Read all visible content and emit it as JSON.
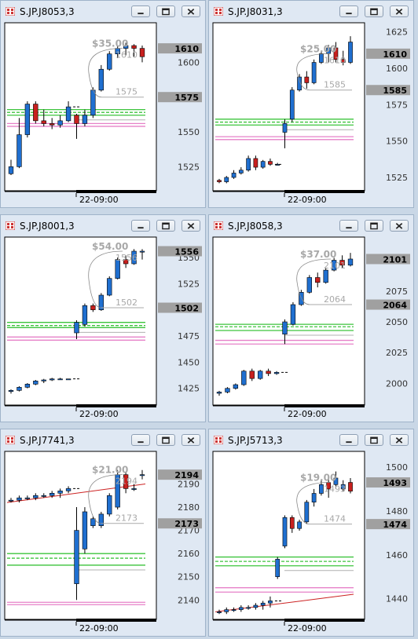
{
  "colors": {
    "bull": "#1f6fd0",
    "bear": "#c8201e",
    "support": "#3cc43c",
    "resistance": "#e680c8",
    "tag_bg": "#a0a0a0",
    "panel": "#ffffff"
  },
  "windows": [
    {
      "title": "S.JP.J8053,3",
      "chart_data": {
        "type": "candlestick",
        "symbol": "S.JP.J8053",
        "ylim": [
          1510,
          1625
        ],
        "yticks": [
          "1600",
          "1575",
          "1550",
          "1525"
        ],
        "xlabel": "22-09:00",
        "price_tags": [
          "1610",
          "1575"
        ],
        "annotations": {
          "range": "$35.00",
          "high": "1610",
          "low": "1575"
        },
        "candles": [
          {
            "o": 1520,
            "h": 1530,
            "l": 1519,
            "c": 1525
          },
          {
            "o": 1525,
            "h": 1560,
            "l": 1524,
            "c": 1548
          },
          {
            "o": 1548,
            "h": 1572,
            "l": 1546,
            "c": 1570
          },
          {
            "o": 1570,
            "h": 1572,
            "l": 1556,
            "c": 1558
          },
          {
            "o": 1558,
            "h": 1566,
            "l": 1554,
            "c": 1556
          },
          {
            "o": 1556,
            "h": 1560,
            "l": 1552,
            "c": 1555
          },
          {
            "o": 1555,
            "h": 1562,
            "l": 1553,
            "c": 1558
          },
          {
            "o": 1558,
            "h": 1572,
            "l": 1557,
            "c": 1568
          },
          {
            "o": 1562,
            "h": 1563,
            "l": 1545,
            "c": 1556
          },
          {
            "o": 1556,
            "h": 1566,
            "l": 1554,
            "c": 1562
          },
          {
            "o": 1562,
            "h": 1582,
            "l": 1560,
            "c": 1580
          },
          {
            "o": 1580,
            "h": 1598,
            "l": 1579,
            "c": 1595
          },
          {
            "o": 1595,
            "h": 1608,
            "l": 1594,
            "c": 1606
          },
          {
            "o": 1606,
            "h": 1612,
            "l": 1603,
            "c": 1610
          },
          {
            "o": 1610,
            "h": 1614,
            "l": 1605,
            "c": 1612
          },
          {
            "o": 1612,
            "h": 1613,
            "l": 1604,
            "c": 1610
          },
          {
            "o": 1610,
            "h": 1612,
            "l": 1600,
            "c": 1604
          }
        ],
        "support": [
          1566,
          1564,
          1562
        ],
        "resistance": [
          1556,
          1554
        ]
      }
    },
    {
      "title": "S.JP.J8031,3",
      "chart_data": {
        "type": "candlestick",
        "symbol": "S.JP.J8031",
        "ylim": [
          1518,
          1628
        ],
        "yticks": [
          "1625",
          "1600",
          "1575",
          "1550",
          "1525"
        ],
        "xlabel": "22-09:00",
        "price_tags": [
          "1610",
          "1585"
        ],
        "annotations": {
          "range": "$25.00",
          "high": "1610",
          "low": "1585"
        },
        "candles": [
          {
            "o": 1523,
            "h": 1524,
            "l": 1521,
            "c": 1522
          },
          {
            "o": 1522,
            "h": 1526,
            "l": 1521,
            "c": 1525
          },
          {
            "o": 1525,
            "h": 1530,
            "l": 1524,
            "c": 1528
          },
          {
            "o": 1528,
            "h": 1532,
            "l": 1527,
            "c": 1530
          },
          {
            "o": 1530,
            "h": 1540,
            "l": 1529,
            "c": 1538
          },
          {
            "o": 1538,
            "h": 1540,
            "l": 1530,
            "c": 1532
          },
          {
            "o": 1532,
            "h": 1537,
            "l": 1531,
            "c": 1536
          },
          {
            "o": 1536,
            "h": 1538,
            "l": 1533,
            "c": 1534
          },
          {
            "o": 1534,
            "h": 1535,
            "l": 1534,
            "c": 1534
          },
          {
            "o": 1556,
            "h": 1565,
            "l": 1545,
            "c": 1562
          },
          {
            "o": 1565,
            "h": 1587,
            "l": 1563,
            "c": 1585
          },
          {
            "o": 1585,
            "h": 1596,
            "l": 1584,
            "c": 1594
          },
          {
            "o": 1594,
            "h": 1598,
            "l": 1586,
            "c": 1590
          },
          {
            "o": 1590,
            "h": 1606,
            "l": 1589,
            "c": 1604
          },
          {
            "o": 1604,
            "h": 1612,
            "l": 1603,
            "c": 1610
          },
          {
            "o": 1610,
            "h": 1616,
            "l": 1604,
            "c": 1614
          },
          {
            "o": 1614,
            "h": 1618,
            "l": 1604,
            "c": 1606
          },
          {
            "o": 1606,
            "h": 1612,
            "l": 1602,
            "c": 1604
          },
          {
            "o": 1604,
            "h": 1622,
            "l": 1603,
            "c": 1618
          }
        ],
        "support": [
          1565,
          1563,
          1561
        ],
        "resistance": [
          1553,
          1551
        ]
      }
    },
    {
      "title": "S.JP.J8001,3",
      "chart_data": {
        "type": "candlestick",
        "symbol": "S.JP.J8001",
        "ylim": [
          1412,
          1565
        ],
        "yticks": [
          "1550",
          "1525",
          "1500",
          "1475",
          "1450",
          "1425"
        ],
        "xlabel": "22-09:00",
        "price_tags": [
          "1556",
          "1502"
        ],
        "annotations": {
          "range": "$54.00",
          "high": "1556",
          "low": "1502"
        },
        "candles": [
          {
            "o": 1422,
            "h": 1424,
            "l": 1420,
            "c": 1423
          },
          {
            "o": 1423,
            "h": 1427,
            "l": 1422,
            "c": 1426
          },
          {
            "o": 1426,
            "h": 1430,
            "l": 1425,
            "c": 1429
          },
          {
            "o": 1429,
            "h": 1433,
            "l": 1428,
            "c": 1432
          },
          {
            "o": 1432,
            "h": 1434,
            "l": 1430,
            "c": 1433
          },
          {
            "o": 1433,
            "h": 1435,
            "l": 1432,
            "c": 1434
          },
          {
            "o": 1434,
            "h": 1435,
            "l": 1433,
            "c": 1434
          },
          {
            "o": 1434,
            "h": 1434,
            "l": 1434,
            "c": 1434
          },
          {
            "o": 1478,
            "h": 1490,
            "l": 1472,
            "c": 1488
          },
          {
            "o": 1486,
            "h": 1506,
            "l": 1484,
            "c": 1504
          },
          {
            "o": 1504,
            "h": 1506,
            "l": 1498,
            "c": 1500
          },
          {
            "o": 1500,
            "h": 1516,
            "l": 1499,
            "c": 1514
          },
          {
            "o": 1514,
            "h": 1532,
            "l": 1513,
            "c": 1530
          },
          {
            "o": 1530,
            "h": 1550,
            "l": 1529,
            "c": 1548
          },
          {
            "o": 1548,
            "h": 1552,
            "l": 1540,
            "c": 1544
          },
          {
            "o": 1544,
            "h": 1558,
            "l": 1543,
            "c": 1556
          },
          {
            "o": 1556,
            "h": 1558,
            "l": 1548,
            "c": 1556
          }
        ],
        "support": [
          1488,
          1485,
          1483
        ],
        "resistance": [
          1474,
          1471
        ]
      }
    },
    {
      "title": "S.JP.J8058,3",
      "chart_data": {
        "type": "candlestick",
        "symbol": "S.JP.J8058",
        "ylim": [
          1985,
          2115
        ],
        "yticks": [
          "2075",
          "2050",
          "2025",
          "2000"
        ],
        "xlabel": "22-09:00",
        "price_tags": [
          "2101",
          "2064"
        ],
        "annotations": {
          "range": "$37.00",
          "high": "2101",
          "low": "2064"
        },
        "candles": [
          {
            "o": 1992,
            "h": 1994,
            "l": 1990,
            "c": 1993
          },
          {
            "o": 1993,
            "h": 1997,
            "l": 1992,
            "c": 1996
          },
          {
            "o": 1996,
            "h": 2000,
            "l": 1995,
            "c": 1999
          },
          {
            "o": 1999,
            "h": 2011,
            "l": 1998,
            "c": 2010
          },
          {
            "o": 2010,
            "h": 2012,
            "l": 2002,
            "c": 2004
          },
          {
            "o": 2004,
            "h": 2011,
            "l": 2003,
            "c": 2010
          },
          {
            "o": 2010,
            "h": 2012,
            "l": 2006,
            "c": 2008
          },
          {
            "o": 2008,
            "h": 2010,
            "l": 2007,
            "c": 2009
          },
          {
            "o": 2040,
            "h": 2052,
            "l": 2032,
            "c": 2050
          },
          {
            "o": 2048,
            "h": 2066,
            "l": 2047,
            "c": 2064
          },
          {
            "o": 2064,
            "h": 2076,
            "l": 2063,
            "c": 2074
          },
          {
            "o": 2074,
            "h": 2088,
            "l": 2073,
            "c": 2086
          },
          {
            "o": 2086,
            "h": 2090,
            "l": 2078,
            "c": 2082
          },
          {
            "o": 2082,
            "h": 2094,
            "l": 2081,
            "c": 2092
          },
          {
            "o": 2092,
            "h": 2102,
            "l": 2091,
            "c": 2100
          },
          {
            "o": 2100,
            "h": 2104,
            "l": 2094,
            "c": 2096
          },
          {
            "o": 2096,
            "h": 2106,
            "l": 2095,
            "c": 2101
          }
        ],
        "support": [
          2048,
          2046,
          2043
        ],
        "resistance": [
          2035,
          2032
        ]
      }
    },
    {
      "title": "S.JP.J7741,3",
      "chart_data": {
        "type": "candlestick",
        "symbol": "S.JP.J7741",
        "ylim": [
          2133,
          2202
        ],
        "yticks": [
          "2190",
          "2180",
          "2170",
          "2160",
          "2150",
          "2140"
        ],
        "xlabel": "22-09:00",
        "price_tags": [
          "2194",
          "2173"
        ],
        "annotations": {
          "range": "$21.00",
          "high": "2194",
          "low": "2173"
        },
        "candles": [
          {
            "o": 2183,
            "h": 2184,
            "l": 2182,
            "c": 2183
          },
          {
            "o": 2183,
            "h": 2185,
            "l": 2182,
            "c": 2184
          },
          {
            "o": 2184,
            "h": 2185,
            "l": 2183,
            "c": 2184
          },
          {
            "o": 2184,
            "h": 2186,
            "l": 2183,
            "c": 2185
          },
          {
            "o": 2185,
            "h": 2186,
            "l": 2184,
            "c": 2185
          },
          {
            "o": 2185,
            "h": 2187,
            "l": 2184,
            "c": 2186
          },
          {
            "o": 2186,
            "h": 2188,
            "l": 2184,
            "c": 2187
          },
          {
            "o": 2187,
            "h": 2189,
            "l": 2186,
            "c": 2188
          },
          {
            "o": 2147,
            "h": 2180,
            "l": 2140,
            "c": 2170
          },
          {
            "o": 2162,
            "h": 2180,
            "l": 2160,
            "c": 2178
          },
          {
            "o": 2172,
            "h": 2176,
            "l": 2171,
            "c": 2175
          },
          {
            "o": 2172,
            "h": 2178,
            "l": 2171,
            "c": 2177
          },
          {
            "o": 2177,
            "h": 2186,
            "l": 2176,
            "c": 2185
          },
          {
            "o": 2180,
            "h": 2196,
            "l": 2179,
            "c": 2194
          },
          {
            "o": 2194,
            "h": 2195,
            "l": 2186,
            "c": 2188
          },
          {
            "o": 2188,
            "h": 2190,
            "l": 2187,
            "c": 2188
          },
          {
            "o": 2194,
            "h": 2196,
            "l": 2192,
            "c": 2194
          }
        ],
        "support": [
          2160,
          2158,
          2155
        ],
        "resistance": [
          2139,
          2138
        ],
        "ma": [
          2182,
          2190
        ]
      }
    },
    {
      "title": "S.JP.J5713,3",
      "chart_data": {
        "type": "candlestick",
        "symbol": "S.JP.J5713",
        "ylim": [
          1432,
          1505
        ],
        "yticks": [
          "1500",
          "1480",
          "1460",
          "1440"
        ],
        "xlabel": "22-09:00",
        "price_tags": [
          "1493",
          "1474"
        ],
        "annotations": {
          "range": "$19.00",
          "high": "1493",
          "low": "1474"
        },
        "candles": [
          {
            "o": 1434,
            "h": 1435,
            "l": 1433,
            "c": 1434
          },
          {
            "o": 1434,
            "h": 1436,
            "l": 1433,
            "c": 1435
          },
          {
            "o": 1435,
            "h": 1436,
            "l": 1434,
            "c": 1435
          },
          {
            "o": 1435,
            "h": 1437,
            "l": 1434,
            "c": 1436
          },
          {
            "o": 1436,
            "h": 1437,
            "l": 1435,
            "c": 1436
          },
          {
            "o": 1436,
            "h": 1438,
            "l": 1435,
            "c": 1437
          },
          {
            "o": 1437,
            "h": 1439,
            "l": 1435,
            "c": 1438
          },
          {
            "o": 1438,
            "h": 1441,
            "l": 1436,
            "c": 1439
          },
          {
            "o": 1450,
            "h": 1459,
            "l": 1449,
            "c": 1458
          },
          {
            "o": 1464,
            "h": 1478,
            "l": 1463,
            "c": 1477
          },
          {
            "o": 1477,
            "h": 1478,
            "l": 1470,
            "c": 1472
          },
          {
            "o": 1472,
            "h": 1476,
            "l": 1471,
            "c": 1475
          },
          {
            "o": 1475,
            "h": 1485,
            "l": 1474,
            "c": 1484
          },
          {
            "o": 1484,
            "h": 1490,
            "l": 1482,
            "c": 1488
          },
          {
            "o": 1488,
            "h": 1494,
            "l": 1487,
            "c": 1492
          },
          {
            "o": 1493,
            "h": 1496,
            "l": 1486,
            "c": 1490
          },
          {
            "o": 1492,
            "h": 1498,
            "l": 1490,
            "c": 1495
          },
          {
            "o": 1490,
            "h": 1494,
            "l": 1489,
            "c": 1492
          },
          {
            "o": 1493,
            "h": 1495,
            "l": 1488,
            "c": 1489
          }
        ],
        "support": [
          1459,
          1457,
          1455
        ],
        "resistance": [
          1445,
          1443
        ],
        "ma": [
          1434,
          1442
        ]
      }
    }
  ]
}
